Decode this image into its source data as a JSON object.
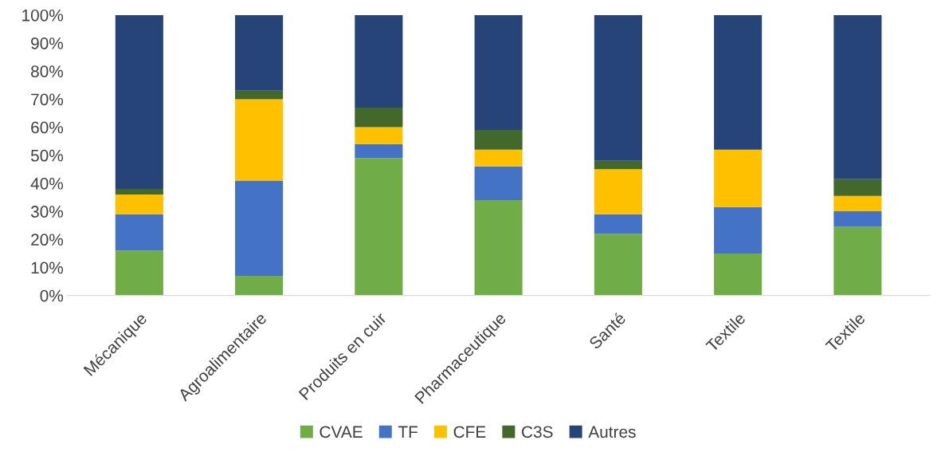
{
  "chart_data": {
    "type": "bar",
    "stacked": true,
    "categories": [
      "Mécanique",
      "Agroalimentaire",
      "Produits en cuir",
      "Pharmaceutique",
      "Santé",
      "Textile",
      "Textile"
    ],
    "series": [
      {
        "name": "CVAE",
        "color": "#70ad47",
        "values": [
          16,
          7,
          49,
          34,
          22,
          15,
          24.5
        ]
      },
      {
        "name": "TF",
        "color": "#4472c4",
        "values": [
          13,
          34,
          5,
          12,
          7,
          16.5,
          5.5
        ]
      },
      {
        "name": "CFE",
        "color": "#ffc000",
        "values": [
          7,
          29,
          6,
          6,
          16,
          20.5,
          5.5
        ]
      },
      {
        "name": "C3S",
        "color": "#43682b",
        "values": [
          2,
          3,
          7,
          7,
          3,
          0,
          6
        ]
      },
      {
        "name": "Autres",
        "color": "#264478",
        "values": [
          62,
          27,
          33,
          41,
          52,
          48,
          58.5
        ]
      }
    ],
    "ylim": [
      0,
      100
    ],
    "yticks": [
      {
        "value": 0,
        "label": "0%"
      },
      {
        "value": 10,
        "label": "10%"
      },
      {
        "value": 20,
        "label": "20%"
      },
      {
        "value": 30,
        "label": "30%"
      },
      {
        "value": 40,
        "label": "40%"
      },
      {
        "value": 50,
        "label": "50%"
      },
      {
        "value": 60,
        "label": "60%"
      },
      {
        "value": 70,
        "label": "70%"
      },
      {
        "value": 80,
        "label": "80%"
      },
      {
        "value": 90,
        "label": "90%"
      },
      {
        "value": 100,
        "label": "100%"
      }
    ],
    "grid": false,
    "legend": "bottom"
  }
}
